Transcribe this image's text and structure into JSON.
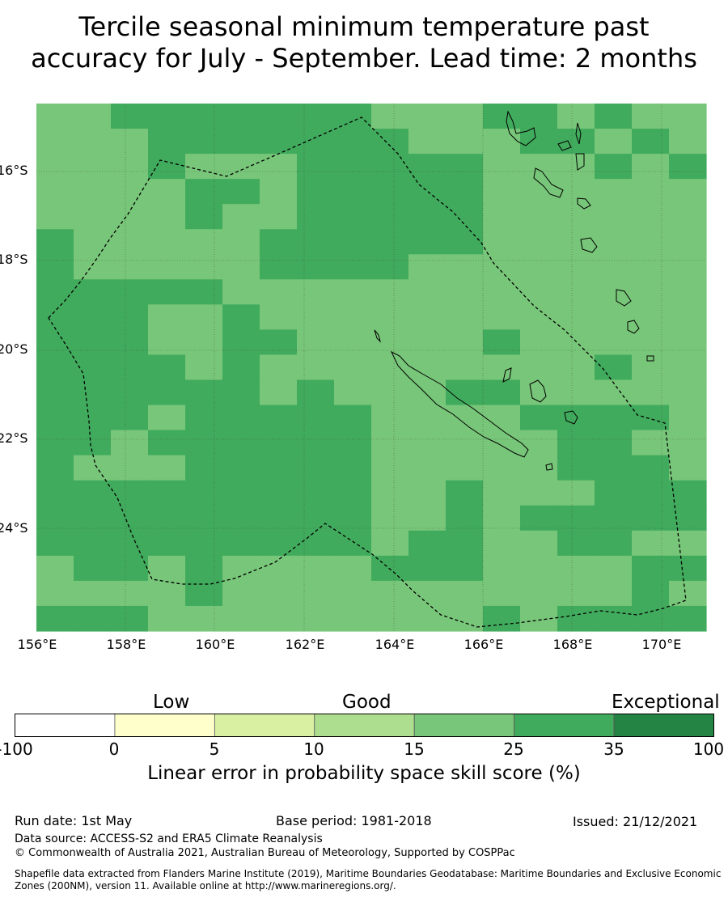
{
  "title_line1": "Tercile seasonal minimum temperature past",
  "title_line2": "accuracy for July - September. Lead time: 2 months",
  "lon_ticks": [
    "156°E",
    "158°E",
    "160°E",
    "162°E",
    "164°E",
    "166°E",
    "168°E",
    "170°E"
  ],
  "lat_ticks": [
    "16°S",
    "18°S",
    "20°S",
    "22°S",
    "24°S"
  ],
  "legend": {
    "low": "Low",
    "good": "Good",
    "exceptional": "Exceptional",
    "ticks": [
      "-100",
      "0",
      "5",
      "10",
      "15",
      "25",
      "35",
      "100"
    ],
    "colors": [
      "#ffffff",
      "#ffffcc",
      "#d9f0a3",
      "#addd8e",
      "#78c679",
      "#41ab5d",
      "#238443"
    ],
    "label": "Linear error in probability space skill score (%)"
  },
  "footer": {
    "run_date": "Run date: 1st May",
    "base_period": "Base period: 1981-2018",
    "issued": "Issued: 21/12/2021",
    "data_source": "Data source: ACCESS-S2 and ERA5 Climate Reanalysis",
    "copyright": "© Commonwealth of Australia 2021, Australian Bureau of Meteorology, Supported by COSPPac",
    "shapefile_line1": "Shapefile data extracted from Flanders Marine Institute (2019), Maritime Boundaries Geodatabase: Maritime Boundaries and Exclusive Economic",
    "shapefile_line2": "Zones (200NM), version 11. Available online at http://www.marineregions.org/."
  },
  "map_colors": {
    "light": "#78c679",
    "dark": "#41ab5d"
  }
}
